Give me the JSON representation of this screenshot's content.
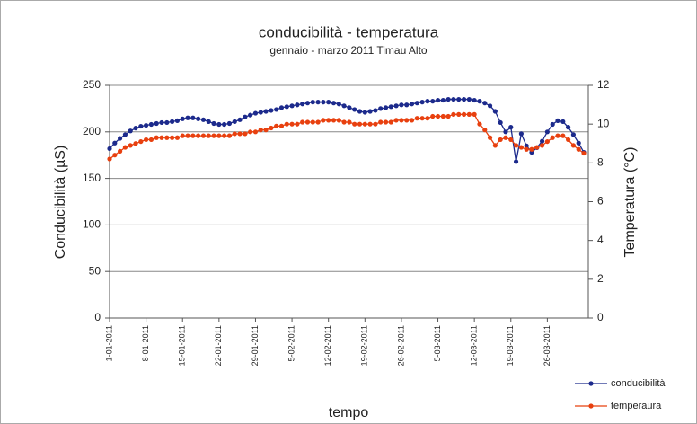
{
  "chart_data": {
    "type": "line",
    "title": "conducibilità - temperatura",
    "subtitle": "gennaio - marzo 2011 Timau Alto",
    "x_label": "tempo",
    "y_label": "Conducibilità (µS)",
    "y2_label": "Temperatura (°C)",
    "categories": [
      "1-01-2011",
      null,
      null,
      null,
      null,
      null,
      null,
      "8-01-2011",
      null,
      null,
      null,
      null,
      null,
      null,
      "15-01-2011",
      null,
      null,
      null,
      null,
      null,
      null,
      "22-01-2011",
      null,
      null,
      null,
      null,
      null,
      null,
      "29-01-2011",
      null,
      null,
      null,
      null,
      null,
      null,
      "5-02-2011",
      null,
      null,
      null,
      null,
      null,
      null,
      "12-02-2011",
      null,
      null,
      null,
      null,
      null,
      null,
      "19-02-2011",
      null,
      null,
      null,
      null,
      null,
      null,
      "26-02-2011",
      null,
      null,
      null,
      null,
      null,
      null,
      "5-03-2011",
      null,
      null,
      null,
      null,
      null,
      null,
      "12-03-2011",
      null,
      null,
      null,
      null,
      null,
      null,
      "19-03-2011",
      null,
      null,
      null,
      null,
      null,
      null,
      "26-03-2011",
      null,
      null,
      null,
      null,
      null,
      null,
      null
    ],
    "series": [
      {
        "name": "conducibilità",
        "color": "#1c2a8c",
        "axis": "y",
        "values": [
          182,
          188,
          193,
          197,
          201,
          204,
          206,
          207,
          208,
          209,
          210,
          210,
          211,
          212,
          214,
          215,
          215,
          214,
          213,
          211,
          209,
          208,
          208,
          209,
          211,
          213,
          216,
          218,
          220,
          221,
          222,
          223,
          224,
          226,
          227,
          228,
          229,
          230,
          231,
          232,
          232,
          232,
          232,
          231,
          230,
          228,
          226,
          224,
          222,
          221,
          222,
          223,
          225,
          226,
          227,
          228,
          229,
          229,
          230,
          231,
          232,
          233,
          233,
          234,
          234,
          235,
          235,
          235,
          235,
          235,
          234,
          233,
          231,
          228,
          222,
          210,
          200,
          205,
          168,
          198,
          185,
          178,
          183,
          190,
          200,
          208,
          212,
          211,
          205,
          197,
          188,
          178
        ]
      },
      {
        "name": "temperaura",
        "color": "#e8400f",
        "axis": "y2",
        "values": [
          8.2,
          8.4,
          8.6,
          8.8,
          8.9,
          9.0,
          9.1,
          9.2,
          9.2,
          9.3,
          9.3,
          9.3,
          9.3,
          9.3,
          9.4,
          9.4,
          9.4,
          9.4,
          9.4,
          9.4,
          9.4,
          9.4,
          9.4,
          9.4,
          9.5,
          9.5,
          9.5,
          9.6,
          9.6,
          9.7,
          9.7,
          9.8,
          9.9,
          9.9,
          10.0,
          10.0,
          10.0,
          10.1,
          10.1,
          10.1,
          10.1,
          10.2,
          10.2,
          10.2,
          10.2,
          10.1,
          10.1,
          10.0,
          10.0,
          10.0,
          10.0,
          10.0,
          10.1,
          10.1,
          10.1,
          10.2,
          10.2,
          10.2,
          10.2,
          10.3,
          10.3,
          10.3,
          10.4,
          10.4,
          10.4,
          10.4,
          10.5,
          10.5,
          10.5,
          10.5,
          10.5,
          10.0,
          9.7,
          9.3,
          8.9,
          9.2,
          9.3,
          9.2,
          8.9,
          8.8,
          8.7,
          8.7,
          8.8,
          8.9,
          9.1,
          9.3,
          9.4,
          9.4,
          9.2,
          8.9,
          8.7,
          8.5
        ]
      }
    ],
    "ylim": [
      0,
      250
    ],
    "yticks": [
      0,
      50,
      100,
      150,
      200,
      250
    ],
    "y2lim": [
      0,
      12
    ],
    "y2ticks": [
      0,
      2,
      4,
      6,
      8,
      10,
      12
    ],
    "grid": true,
    "legend": "lower right"
  }
}
